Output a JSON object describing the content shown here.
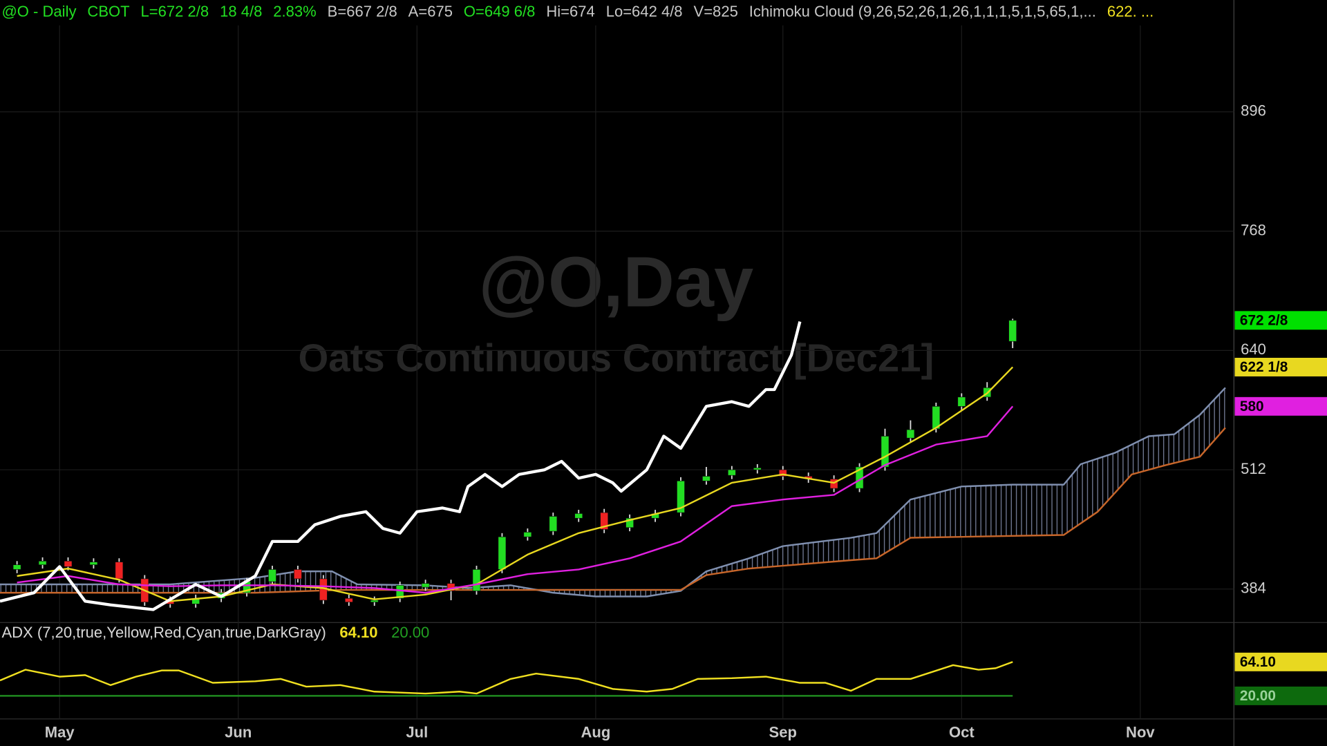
{
  "chart_data": [
    {
      "type": "candlestick",
      "header": [
        {
          "text": "@O - Daily",
          "color": "#22e022"
        },
        {
          "text": "CBOT",
          "color": "#22e022"
        },
        {
          "text": "L=672 2/8",
          "color": "#22e022"
        },
        {
          "text": "18 4/8",
          "color": "#22e022"
        },
        {
          "text": "2.83%",
          "color": "#22e022"
        },
        {
          "text": "B=667 2/8",
          "color": "#c8c8c8"
        },
        {
          "text": "A=675",
          "color": "#c8c8c8"
        },
        {
          "text": "O=649 6/8",
          "color": "#22e022"
        },
        {
          "text": "Hi=674",
          "color": "#c8c8c8"
        },
        {
          "text": "Lo=642 4/8",
          "color": "#c8c8c8"
        },
        {
          "text": "V=825",
          "color": "#c8c8c8"
        },
        {
          "text": "Ichimoku Cloud (9,26,52,26,1,26,1,1,1,5,1,5,65,1,...",
          "color": "#c8c8c8"
        },
        {
          "text": "622. ...",
          "color": "#f0e020"
        }
      ],
      "watermark": "@O,Day",
      "watermark_subtitle": "Oats Continuous Contract [Dec21]",
      "x": [
        2,
        5,
        8,
        11,
        14,
        17,
        20,
        23,
        26,
        29,
        32,
        35,
        38,
        41,
        44,
        47,
        50,
        53,
        56,
        59,
        62,
        65,
        68,
        71,
        74,
        77,
        80,
        83,
        86,
        89,
        92,
        95,
        98,
        101,
        104,
        107,
        110,
        113,
        116,
        119
      ],
      "open": [
        405,
        410,
        414,
        410,
        413,
        395,
        372,
        368,
        374,
        380,
        392,
        405,
        395,
        374,
        370,
        374,
        386,
        390,
        382,
        405,
        440,
        446,
        460,
        466,
        450,
        460,
        466,
        500,
        506,
        512,
        512,
        505,
        502,
        492,
        515,
        546,
        556,
        580,
        590,
        649.75
      ],
      "high": [
        414,
        418,
        418,
        417,
        417,
        399,
        376,
        378,
        384,
        396,
        409,
        409,
        399,
        378,
        376,
        392,
        394,
        394,
        409,
        444,
        449,
        466,
        469,
        470,
        464,
        469,
        504,
        515,
        516,
        518,
        516,
        509,
        506,
        519,
        556,
        565,
        584,
        594,
        606,
        674
      ],
      "low": [
        401,
        406,
        404,
        406,
        391,
        366,
        364,
        364,
        370,
        376,
        388,
        391,
        368,
        366,
        366,
        370,
        382,
        372,
        378,
        401,
        436,
        442,
        456,
        444,
        446,
        456,
        462,
        496,
        502,
        508,
        501,
        498,
        488,
        488,
        511,
        542,
        552,
        576,
        586,
        642.5
      ],
      "close": [
        410,
        414,
        408,
        413,
        395,
        370,
        368,
        374,
        380,
        392,
        405,
        395,
        372,
        370,
        372,
        388,
        390,
        382,
        405,
        440,
        445,
        462,
        465,
        448,
        460,
        465,
        500,
        505,
        512,
        514,
        505,
        502,
        492,
        515,
        548,
        555,
        580,
        590,
        600,
        672.25
      ],
      "up_color": "#22dd22",
      "down_color": "#ee2222",
      "series": [
        {
          "color": "#ffffff",
          "x": [
            0,
            4,
            7,
            10,
            13,
            18,
            23,
            26,
            30,
            32,
            35,
            37,
            40,
            43,
            45,
            47,
            49,
            52,
            54,
            55,
            57,
            59,
            61,
            64,
            66,
            68,
            70,
            72,
            73,
            76,
            78,
            80,
            83,
            86,
            88,
            90,
            91,
            93,
            94
          ],
          "values": [
            371,
            380,
            408,
            371,
            367,
            362,
            389,
            376,
            398,
            435,
            435,
            453,
            462,
            467,
            449,
            444,
            467,
            471,
            467,
            494,
            507,
            494,
            507,
            512,
            521,
            503,
            507,
            498,
            489,
            512,
            548,
            535,
            580,
            585,
            580,
            598,
            598,
            635,
            671
          ]
        },
        {
          "color": "#e8d820",
          "x": [
            2,
            8,
            14,
            20,
            26,
            32,
            38,
            44,
            50,
            56,
            62,
            68,
            74,
            80,
            86,
            92,
            98,
            104,
            110,
            116,
            119
          ],
          "values": [
            398,
            406,
            394,
            371,
            376,
            389,
            385,
            373,
            378,
            389,
            421,
            444,
            458,
            471,
            498,
            507,
            498,
            526,
            557,
            594,
            622.125
          ]
        },
        {
          "color": "#e020e0",
          "x": [
            2,
            8,
            14,
            20,
            26,
            32,
            38,
            44,
            50,
            56,
            62,
            68,
            74,
            80,
            86,
            92,
            98,
            104,
            110,
            116,
            119
          ],
          "values": [
            391,
            398,
            389,
            387,
            388,
            388,
            387,
            385,
            380,
            389,
            400,
            405,
            417,
            435,
            473,
            480,
            485,
            517,
            539,
            548,
            580
          ]
        },
        {
          "color": "#8090b0",
          "x": [
            0,
            10,
            20,
            30,
            35,
            39,
            42,
            50,
            55,
            60,
            65,
            70,
            76,
            80,
            83,
            88,
            92,
            100,
            103,
            107,
            113,
            119,
            125,
            127,
            131,
            135,
            138,
            141,
            144
          ],
          "values": [
            389,
            389,
            389,
            396,
            403,
            403,
            389,
            388,
            385,
            388,
            380,
            376,
            376,
            382,
            403,
            417,
            430,
            439,
            444,
            480,
            494,
            496,
            496,
            518,
            530,
            548,
            550,
            571,
            600
          ]
        },
        {
          "color": "#c8662a",
          "x": [
            0,
            10,
            20,
            30,
            40,
            50,
            60,
            70,
            80,
            83,
            88,
            92,
            100,
            103,
            107,
            125,
            129,
            133,
            137,
            141,
            144
          ],
          "values": [
            380,
            380,
            380,
            380,
            383,
            383,
            383,
            383,
            383,
            399,
            406,
            409,
            415,
            417,
            439,
            442,
            467,
            507,
            517,
            526,
            557
          ]
        }
      ],
      "last_labels": [
        {
          "value": 672.25,
          "label": "672 2/8",
          "color": "#00e000"
        },
        {
          "value": 622.125,
          "label": "622 1/8",
          "color": "#e8d820"
        },
        {
          "value": 580,
          "label": "580",
          "color": "#e020e0"
        }
      ],
      "xlim": [
        0,
        145
      ],
      "xticks": [
        {
          "value": 7,
          "label": "May"
        },
        {
          "value": 28,
          "label": "Jun"
        },
        {
          "value": 49,
          "label": "Jul"
        },
        {
          "value": 70,
          "label": "Aug"
        },
        {
          "value": 92,
          "label": "Sep"
        },
        {
          "value": 113,
          "label": "Oct"
        },
        {
          "value": 134,
          "label": "Nov"
        }
      ],
      "ylim": [
        349,
        1016
      ],
      "yticks": [
        384,
        512,
        640,
        768,
        896
      ],
      "grid": true
    },
    {
      "type": "line",
      "title": "ADX (7,20,true,Yellow,Red,Cyan,true,DarkGray)",
      "series": [
        {
          "color": "#f0e020",
          "x": [
            0,
            3,
            7,
            10,
            13,
            16,
            19,
            21,
            25,
            30,
            33,
            36,
            40,
            44,
            50,
            54,
            56,
            60,
            63,
            68,
            72,
            76,
            79,
            82,
            86,
            90,
            94,
            97,
            100,
            103,
            107,
            112,
            115,
            117,
            119
          ],
          "values": [
            40,
            54,
            45,
            47,
            34,
            45,
            53,
            53,
            37,
            39,
            42,
            32,
            34,
            25.5,
            23,
            25.5,
            23,
            42,
            49,
            42,
            29,
            25.5,
            29,
            42,
            43,
            45,
            37,
            37,
            26.6,
            42,
            42,
            60,
            54,
            56,
            64.1
          ],
          "last_label": {
            "value": 64.1,
            "label": "64.10"
          }
        },
        {
          "color": "#1f8a1f",
          "x": [
            0,
            119
          ],
          "values": [
            20,
            20
          ],
          "last_label": {
            "value": 20,
            "label": "20.00"
          }
        }
      ],
      "xlim": [
        0,
        145
      ],
      "ylim": [
        -10,
        89
      ]
    }
  ]
}
